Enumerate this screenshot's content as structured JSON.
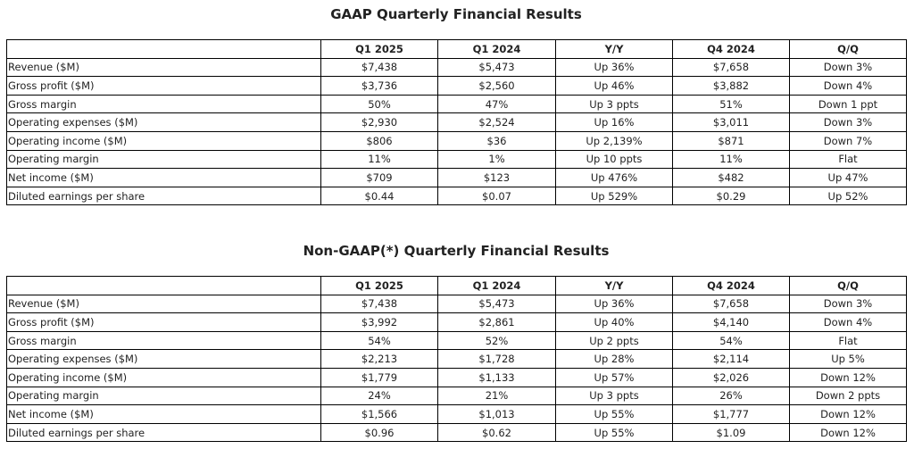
{
  "gaap": {
    "title": "GAAP Quarterly Financial Results",
    "headers": [
      "",
      "Q1 2025",
      "Q1 2024",
      "Y/Y",
      "Q4 2024",
      "Q/Q"
    ],
    "rows": [
      {
        "label": "Revenue ($M)",
        "q1_2025": "$7,438",
        "q1_2024": "$5,473",
        "yy": "Up 36%",
        "q4_2024": "$7,658",
        "qq": "Down 3%"
      },
      {
        "label": "Gross profit ($M)",
        "q1_2025": "$3,736",
        "q1_2024": "$2,560",
        "yy": "Up 46%",
        "q4_2024": "$3,882",
        "qq": "Down 4%"
      },
      {
        "label": "Gross margin",
        "q1_2025": "50%",
        "q1_2024": "47%",
        "yy": "Up 3 ppts",
        "q4_2024": "51%",
        "qq": "Down 1 ppt"
      },
      {
        "label": "Operating expenses ($M)",
        "q1_2025": "$2,930",
        "q1_2024": "$2,524",
        "yy": "Up 16%",
        "q4_2024": "$3,011",
        "qq": "Down 3%"
      },
      {
        "label": "Operating income ($M)",
        "q1_2025": "$806",
        "q1_2024": "$36",
        "yy": "Up 2,139%",
        "q4_2024": "$871",
        "qq": "Down 7%"
      },
      {
        "label": "Operating margin",
        "q1_2025": "11%",
        "q1_2024": "1%",
        "yy": "Up 10 ppts",
        "q4_2024": "11%",
        "qq": "Flat"
      },
      {
        "label": "Net income ($M)",
        "q1_2025": "$709",
        "q1_2024": "$123",
        "yy": "Up 476%",
        "q4_2024": "$482",
        "qq": "Up 47%"
      },
      {
        "label": "Diluted earnings per share",
        "q1_2025": "$0.44",
        "q1_2024": "$0.07",
        "yy": "Up 529%",
        "q4_2024": "$0.29",
        "qq": "Up 52%"
      }
    ]
  },
  "nongaap": {
    "title": "Non-GAAP(*) Quarterly Financial Results",
    "headers": [
      "",
      "Q1 2025",
      "Q1 2024",
      "Y/Y",
      "Q4 2024",
      "Q/Q"
    ],
    "rows": [
      {
        "label": "Revenue ($M)",
        "q1_2025": "$7,438",
        "q1_2024": "$5,473",
        "yy": "Up 36%",
        "q4_2024": "$7,658",
        "qq": "Down 3%"
      },
      {
        "label": "Gross profit ($M)",
        "q1_2025": "$3,992",
        "q1_2024": "$2,861",
        "yy": "Up 40%",
        "q4_2024": "$4,140",
        "qq": "Down 4%"
      },
      {
        "label": "Gross margin",
        "q1_2025": "54%",
        "q1_2024": "52%",
        "yy": "Up 2 ppts",
        "q4_2024": "54%",
        "qq": "Flat"
      },
      {
        "label": "Operating expenses ($M)",
        "q1_2025": "$2,213",
        "q1_2024": "$1,728",
        "yy": "Up 28%",
        "q4_2024": "$2,114",
        "qq": "Up 5%"
      },
      {
        "label": "Operating income ($M)",
        "q1_2025": "$1,779",
        "q1_2024": "$1,133",
        "yy": "Up 57%",
        "q4_2024": "$2,026",
        "qq": "Down 12%"
      },
      {
        "label": "Operating margin",
        "q1_2025": "24%",
        "q1_2024": "21%",
        "yy": "Up 3 ppts",
        "q4_2024": "26%",
        "qq": "Down 2 ppts"
      },
      {
        "label": "Net income ($M)",
        "q1_2025": "$1,566",
        "q1_2024": "$1,013",
        "yy": "Up 55%",
        "q4_2024": "$1,777",
        "qq": "Down 12%"
      },
      {
        "label": "Diluted earnings per share",
        "q1_2025": "$0.96",
        "q1_2024": "$0.62",
        "yy": "Up 55%",
        "q4_2024": "$1.09",
        "qq": "Down 12%"
      }
    ]
  }
}
